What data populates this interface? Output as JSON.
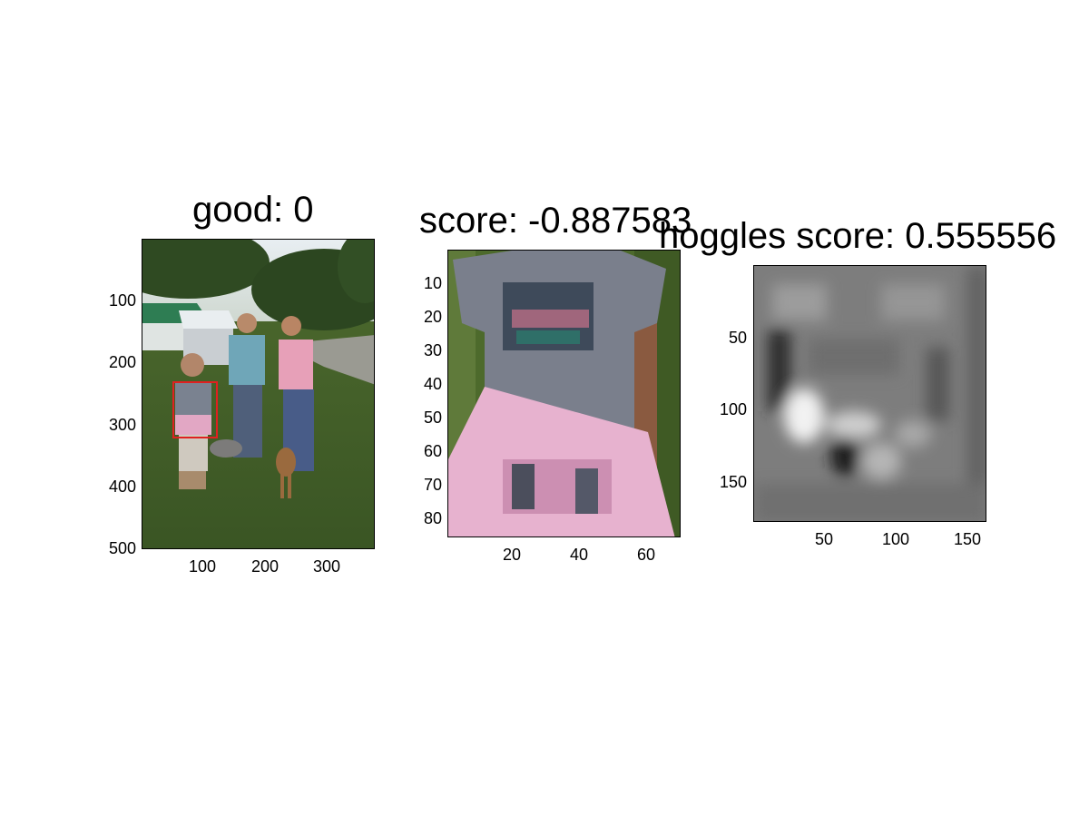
{
  "panels": [
    {
      "title": "good: 0",
      "yticks": [
        "100",
        "200",
        "300",
        "400",
        "500"
      ],
      "xticks": [
        "100",
        "200",
        "300"
      ],
      "image": "outdoor-photo-family-with-dogs",
      "detection_box_color": "#e02020"
    },
    {
      "title": "score: -0.887583",
      "yticks": [
        "10",
        "20",
        "30",
        "40",
        "50",
        "60",
        "70",
        "80"
      ],
      "xticks": [
        "20",
        "40",
        "60"
      ],
      "image": "cropped-torso-gray-tshirt-pink-sweater"
    },
    {
      "title": "hoggles score: 0.555556",
      "yticks": [
        "50",
        "100",
        "150"
      ],
      "xticks": [
        "50",
        "100",
        "150"
      ],
      "image": "grayscale-hog-inversion"
    }
  ]
}
